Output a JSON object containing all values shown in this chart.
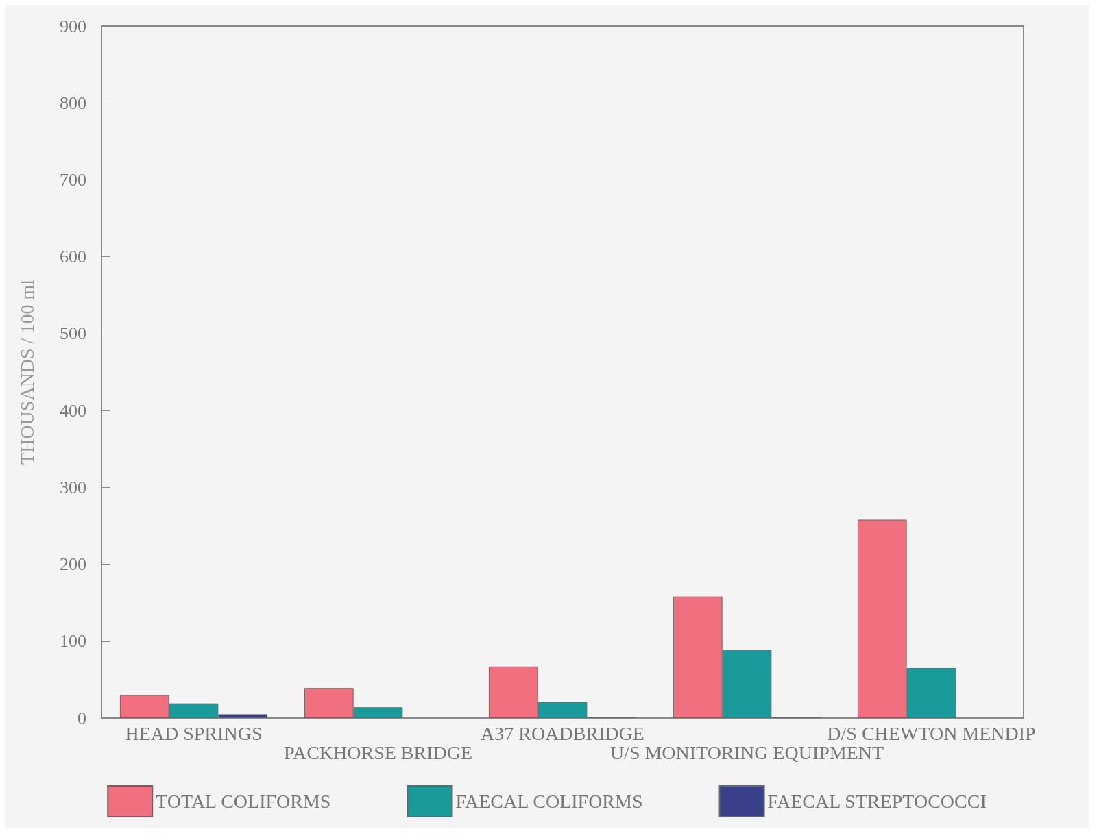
{
  "chart_data": {
    "type": "bar",
    "ylabel": "THOUSANDS / 100 ml",
    "categories": [
      "HEAD SPRINGS",
      "PACKHORSE BRIDGE",
      "A37 ROADBRIDGE",
      "U/S MONITORING EQUIPMENT",
      "D/S CHEWTON MENDIP"
    ],
    "series": [
      {
        "name": "TOTAL COLIFORMS",
        "color": "#f0707f",
        "values": [
          30,
          39,
          67,
          158,
          258
        ]
      },
      {
        "name": "FAECAL COLIFORMS",
        "color": "#1a9a9a",
        "values": [
          19,
          14,
          21,
          89,
          65
        ]
      },
      {
        "name": "FAECAL STREPTOCOCCI",
        "color": "#3a3f8a",
        "values": [
          5,
          0,
          1,
          1,
          0
        ]
      }
    ],
    "ylim": [
      0,
      900
    ],
    "yticks": [
      0,
      100,
      200,
      300,
      400,
      500,
      600,
      700,
      800,
      900
    ],
    "grid": false,
    "legend": "bottom"
  }
}
